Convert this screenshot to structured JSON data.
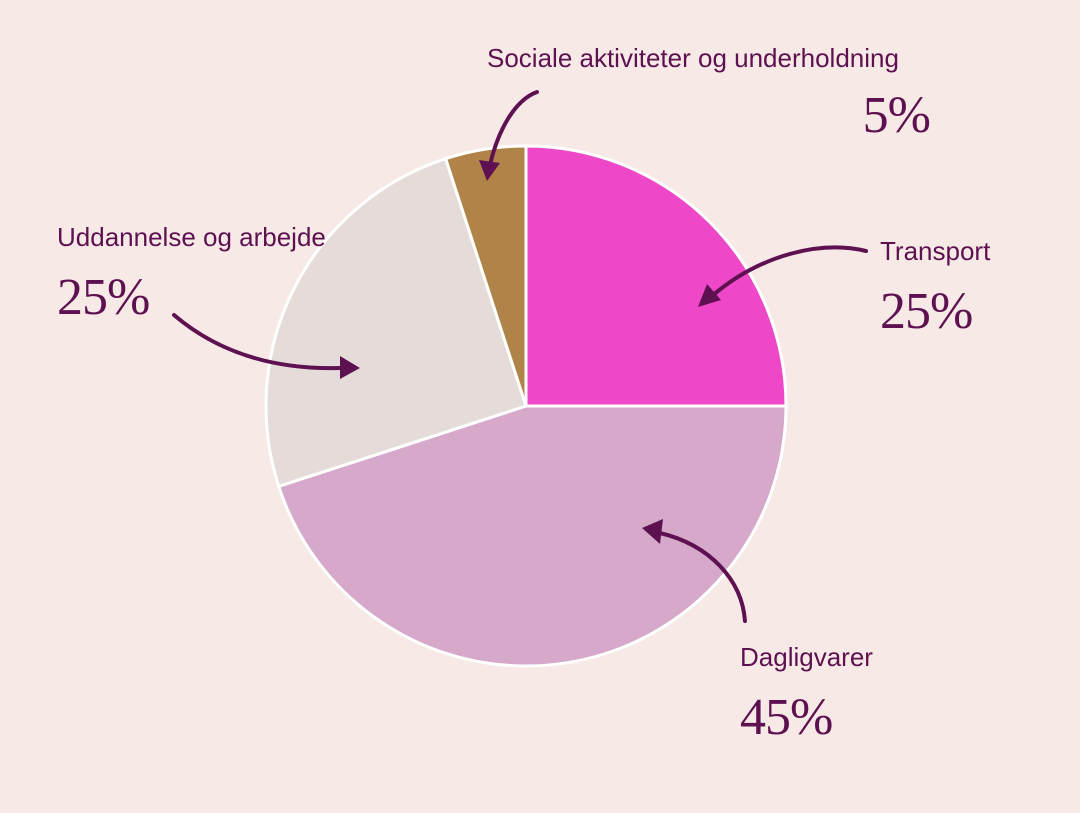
{
  "chart_data": {
    "type": "pie",
    "title": "",
    "slices": [
      {
        "label": "Transport",
        "value": 25,
        "value_label": "25%",
        "color": "#ee48c9"
      },
      {
        "label": "Dagligvarer",
        "value": 45,
        "value_label": "45%",
        "color": "#d6a9cb"
      },
      {
        "label": "Uddannelse og arbejde",
        "value": 25,
        "value_label": "25%",
        "color": "#e5dcd9"
      },
      {
        "label": "Sociale aktiviteter og underholdning",
        "value": 5,
        "value_label": "5%",
        "color": "#b08448"
      }
    ],
    "start_angle": "12 o'clock",
    "direction": "clockwise",
    "slice_border_color": "#ffffff",
    "background": "#f6e9e6",
    "text_color": "#5e1150"
  }
}
